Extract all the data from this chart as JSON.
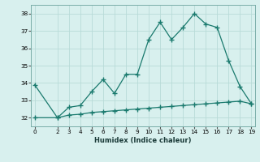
{
  "xlabel": "Humidex (Indice chaleur)",
  "x_upper": [
    0,
    2,
    3,
    4,
    5,
    6,
    7,
    8,
    9,
    10,
    11,
    12,
    13,
    14,
    15,
    16,
    17,
    18,
    19
  ],
  "y_upper": [
    33.9,
    32.0,
    32.6,
    32.7,
    33.5,
    34.2,
    33.4,
    34.5,
    34.5,
    36.5,
    37.5,
    36.5,
    37.2,
    38.0,
    37.4,
    37.2,
    35.3,
    33.8,
    32.8
  ],
  "x_lower": [
    0,
    2,
    3,
    4,
    5,
    6,
    7,
    8,
    9,
    10,
    11,
    12,
    13,
    14,
    15,
    16,
    17,
    18,
    19
  ],
  "y_lower": [
    32.0,
    32.0,
    32.15,
    32.2,
    32.3,
    32.35,
    32.4,
    32.45,
    32.5,
    32.55,
    32.6,
    32.65,
    32.7,
    32.75,
    32.8,
    32.85,
    32.9,
    32.95,
    32.8
  ],
  "xticks": [
    0,
    2,
    3,
    4,
    5,
    6,
    7,
    8,
    9,
    10,
    11,
    12,
    13,
    14,
    15,
    16,
    17,
    18,
    19
  ],
  "line_color": "#1a7a6e",
  "bg_color": "#d8f0ee",
  "grid_color": "#b8dbd8",
  "ylim": [
    31.5,
    38.5
  ],
  "xlim": [
    -0.3,
    19.3
  ],
  "figsize": [
    3.2,
    2.0
  ],
  "dpi": 100
}
